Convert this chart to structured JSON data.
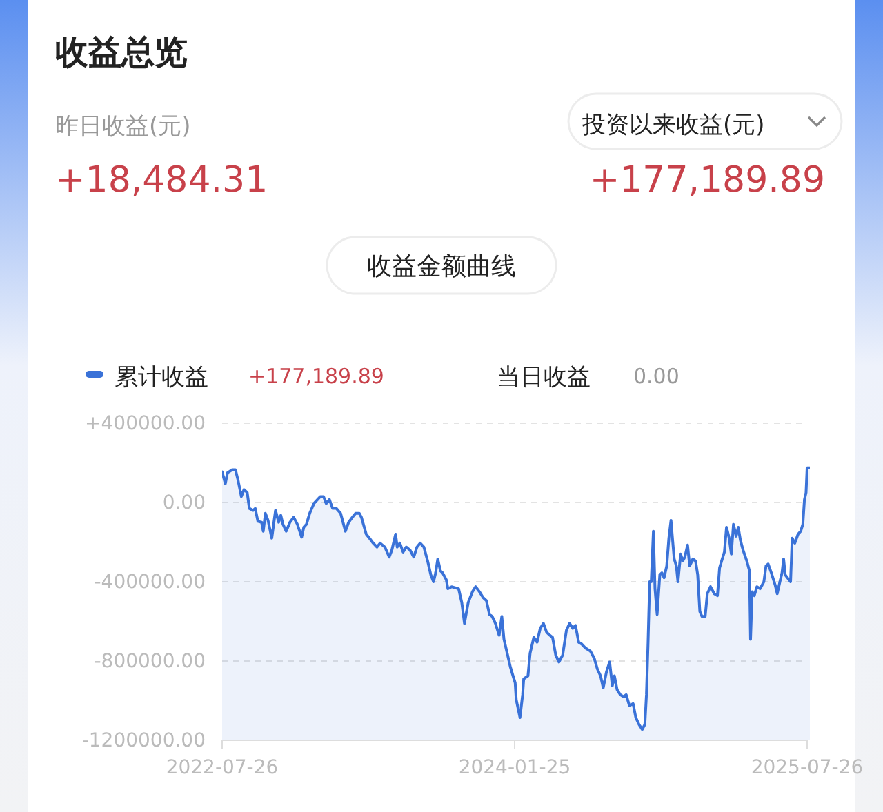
{
  "chart_data": {
    "type": "area",
    "title": "收益总览",
    "annotations": [
      "昨日收益(元)",
      "+18,484.31",
      "投资以来收益(元)",
      "+177,189.89",
      "收益金额曲线",
      "+177,189.89",
      "当日收益",
      "0.00"
    ],
    "legend": "top left",
    "grid": "y",
    "xlim": [
      "2022-07-26",
      "2025-07-26"
    ],
    "xticks": [
      "2022-07-26",
      "2024-01-25",
      "2025-07-26"
    ],
    "ylim": [
      -1200000,
      400000
    ],
    "yticks": [
      {
        "value": 400000,
        "label": "+400000.00"
      },
      {
        "value": 0,
        "label": "0.00"
      },
      {
        "value": -400000,
        "label": "-400000.00"
      },
      {
        "value": -800000,
        "label": "-800000.00"
      },
      {
        "value": -1200000,
        "label": "-1200000.00"
      }
    ],
    "series": [
      {
        "name": "累计收益",
        "color": "#3a72d8",
        "x": [
          "2022-07-26",
          "2022-08-01",
          "2022-08-05",
          "2022-08-14",
          "2022-08-20",
          "2022-08-25",
          "2022-08-31",
          "2022-09-05",
          "2022-09-11",
          "2022-09-15",
          "2022-09-22",
          "2022-09-26",
          "2022-10-01",
          "2022-10-08",
          "2022-10-11",
          "2022-10-15",
          "2022-10-20",
          "2022-10-27",
          "2022-11-03",
          "2022-11-09",
          "2022-11-13",
          "2022-11-17",
          "2022-11-23",
          "2022-11-30",
          "2022-12-07",
          "2022-12-14",
          "2022-12-22",
          "2022-12-26",
          "2022-12-31",
          "2023-01-06",
          "2023-01-14",
          "2023-01-26",
          "2023-02-01",
          "2023-02-06",
          "2023-02-12",
          "2023-02-18",
          "2023-02-25",
          "2023-03-05",
          "2023-03-14",
          "2023-03-20",
          "2023-03-27",
          "2023-04-02",
          "2023-04-09",
          "2023-04-13",
          "2023-04-22",
          "2023-04-28",
          "2023-05-05",
          "2023-05-12",
          "2023-05-18",
          "2023-05-27",
          "2023-06-04",
          "2023-06-09",
          "2023-06-16",
          "2023-06-19",
          "2023-06-24",
          "2023-06-30",
          "2023-07-06",
          "2023-07-13",
          "2023-07-20",
          "2023-07-26",
          "2023-08-01",
          "2023-08-08",
          "2023-08-15",
          "2023-08-21",
          "2023-08-26",
          "2023-08-30",
          "2023-09-03",
          "2023-09-08",
          "2023-09-12",
          "2023-09-19",
          "2023-09-22",
          "2023-09-29",
          "2023-10-12",
          "2023-10-18",
          "2023-10-23",
          "2023-10-30",
          "2023-11-07",
          "2023-11-13",
          "2023-11-20",
          "2023-11-27",
          "2023-12-03",
          "2023-12-09",
          "2023-12-14",
          "2023-12-20",
          "2023-12-27",
          "2024-01-01",
          "2024-01-05",
          "2024-01-11",
          "2024-01-17",
          "2024-01-22",
          "2024-01-26",
          "2024-01-28",
          "2024-02-04",
          "2024-02-09",
          "2024-02-11",
          "2024-02-19",
          "2024-02-23",
          "2024-03-01",
          "2024-03-07",
          "2024-03-13",
          "2024-03-19",
          "2024-03-25",
          "2024-03-31",
          "2024-04-05",
          "2024-04-11",
          "2024-04-17",
          "2024-04-24",
          "2024-05-01",
          "2024-05-07",
          "2024-05-13",
          "2024-05-18",
          "2024-05-24",
          "2024-05-30",
          "2024-06-06",
          "2024-06-15",
          "2024-06-22",
          "2024-06-28",
          "2024-07-04",
          "2024-07-09",
          "2024-07-15",
          "2024-07-21",
          "2024-07-26",
          "2024-07-30",
          "2024-08-04",
          "2024-08-10",
          "2024-08-16",
          "2024-08-21",
          "2024-08-27",
          "2024-09-03",
          "2024-09-08",
          "2024-09-14",
          "2024-09-20",
          "2024-09-25",
          "2024-09-28",
          "2024-10-01",
          "2024-10-04",
          "2024-10-07",
          "2024-10-11",
          "2024-10-14",
          "2024-10-18",
          "2024-10-23",
          "2024-10-27",
          "2024-10-31",
          "2024-11-05",
          "2024-11-09",
          "2024-11-13",
          "2024-11-16",
          "2024-11-19",
          "2024-11-23",
          "2024-11-26",
          "2024-12-01",
          "2024-12-05",
          "2024-12-09",
          "2024-12-14",
          "2024-12-18",
          "2024-12-24",
          "2024-12-29",
          "2025-01-02",
          "2025-01-06",
          "2025-01-10",
          "2025-01-16",
          "2025-01-20",
          "2025-01-26",
          "2025-02-02",
          "2025-02-08",
          "2025-02-12",
          "2025-02-17",
          "2025-02-21",
          "2025-02-25",
          "2025-03-02",
          "2025-03-06",
          "2025-03-10",
          "2025-03-15",
          "2025-03-19",
          "2025-03-23",
          "2025-03-28",
          "2025-04-04",
          "2025-04-09",
          "2025-04-11",
          "2025-04-14",
          "2025-04-18",
          "2025-04-23",
          "2025-04-29",
          "2025-05-06",
          "2025-05-10",
          "2025-05-14",
          "2025-05-20",
          "2025-05-27",
          "2025-05-31",
          "2025-06-05",
          "2025-06-09",
          "2025-06-12",
          "2025-06-15",
          "2025-06-22",
          "2025-06-25",
          "2025-06-28",
          "2025-07-03",
          "2025-07-09",
          "2025-07-14",
          "2025-07-18",
          "2025-07-21",
          "2025-07-24",
          "2025-07-26"
        ],
        "values": [
          155000,
          95000,
          150000,
          165000,
          165000,
          110000,
          30000,
          65000,
          50000,
          -30000,
          -40000,
          -30000,
          -95000,
          -100000,
          -145000,
          -55000,
          -90000,
          -180000,
          -40000,
          -100000,
          -65000,
          -110000,
          -145000,
          -100000,
          -75000,
          -110000,
          -175000,
          -125000,
          -110000,
          -55000,
          -5000,
          30000,
          30000,
          -5000,
          15000,
          -30000,
          -30000,
          -55000,
          -145000,
          -100000,
          -75000,
          -55000,
          -55000,
          -75000,
          -160000,
          -180000,
          -205000,
          -225000,
          -205000,
          -225000,
          -275000,
          -240000,
          -160000,
          -225000,
          -205000,
          -250000,
          -225000,
          -240000,
          -275000,
          -225000,
          -205000,
          -225000,
          -295000,
          -365000,
          -400000,
          -355000,
          -285000,
          -345000,
          -355000,
          -390000,
          -435000,
          -425000,
          -435000,
          -505000,
          -610000,
          -505000,
          -450000,
          -425000,
          -450000,
          -480000,
          -495000,
          -565000,
          -575000,
          -610000,
          -670000,
          -575000,
          -690000,
          -760000,
          -830000,
          -875000,
          -910000,
          -995000,
          -1085000,
          -970000,
          -890000,
          -875000,
          -760000,
          -680000,
          -705000,
          -635000,
          -610000,
          -655000,
          -670000,
          -680000,
          -770000,
          -805000,
          -770000,
          -645000,
          -610000,
          -635000,
          -620000,
          -705000,
          -715000,
          -735000,
          -750000,
          -785000,
          -840000,
          -875000,
          -935000,
          -855000,
          -805000,
          -925000,
          -875000,
          -945000,
          -970000,
          -980000,
          -970000,
          -1025000,
          -1015000,
          -1085000,
          -1120000,
          -1145000,
          -1120000,
          -970000,
          -705000,
          -400000,
          -400000,
          -145000,
          -435000,
          -565000,
          -365000,
          -355000,
          -380000,
          -320000,
          -180000,
          -90000,
          -190000,
          -285000,
          -320000,
          -400000,
          -260000,
          -295000,
          -275000,
          -215000,
          -320000,
          -285000,
          -295000,
          -365000,
          -550000,
          -575000,
          -575000,
          -460000,
          -425000,
          -460000,
          -470000,
          -330000,
          -285000,
          -250000,
          -125000,
          -180000,
          -260000,
          -110000,
          -170000,
          -125000,
          -190000,
          -240000,
          -295000,
          -345000,
          -690000,
          -450000,
          -470000,
          -425000,
          -435000,
          -400000,
          -320000,
          -310000,
          -355000,
          -415000,
          -460000,
          -400000,
          -355000,
          -285000,
          -365000,
          -390000,
          -400000,
          -180000,
          -205000,
          -160000,
          -145000,
          -110000,
          15000,
          50000,
          175000
        ]
      }
    ]
  }
}
